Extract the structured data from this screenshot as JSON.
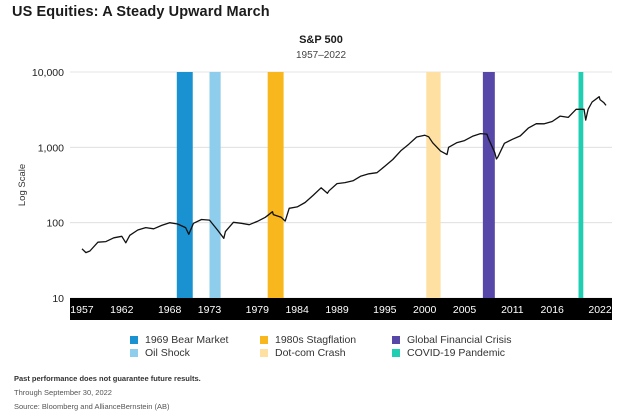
{
  "page_title": "US Equities: A Steady Upward March",
  "chart_data": {
    "type": "line",
    "title": "S&P 500",
    "subtitle": "1957–2022",
    "ylabel": "Log Scale",
    "xlabel": "",
    "y_scale": "log",
    "ylim": [
      10,
      10000
    ],
    "xlim": [
      1955.5,
      2023.5
    ],
    "y_ticks": [
      10,
      100,
      1000,
      10000
    ],
    "y_tick_labels": [
      "10",
      "100",
      "1,000",
      "10,000"
    ],
    "x_ticks": [
      1957,
      1962,
      1968,
      1973,
      1979,
      1984,
      1989,
      1995,
      2000,
      2005,
      2011,
      2016,
      2022
    ],
    "x_tick_labels": [
      "1957",
      "1962",
      "1968",
      "1973",
      "1979",
      "1984",
      "1989",
      "1995",
      "2000",
      "2005",
      "2011",
      "2016",
      "2022"
    ],
    "grid": "horizontal",
    "series": [
      {
        "color": "#111111",
        "x": [
          1957,
          1957.5,
          1958,
          1959,
          1960,
          1961,
          1962,
          1962.5,
          1963,
          1964,
          1965,
          1966,
          1967,
          1968,
          1969,
          1970,
          1970.4,
          1971,
          1972,
          1973,
          1974,
          1974.8,
          1975,
          1976,
          1977,
          1978,
          1979,
          1980,
          1980.9,
          1981,
          1982,
          1982.5,
          1983,
          1984,
          1985,
          1986,
          1987,
          1987.8,
          1988,
          1989,
          1990,
          1991,
          1992,
          1993,
          1994,
          1995,
          1996,
          1997,
          1998,
          1999,
          2000,
          2000.5,
          2001,
          2002,
          2002.8,
          2003,
          2004,
          2005,
          2006,
          2007,
          2007.8,
          2008,
          2008.8,
          2009,
          2009.2,
          2010,
          2011,
          2012,
          2013,
          2014,
          2015,
          2016,
          2017,
          2018,
          2019,
          2020,
          2020.2,
          2020.5,
          2021,
          2021.9,
          2022,
          2022.5,
          2022.75
        ],
        "values": [
          45,
          40,
          42,
          55,
          56,
          63,
          66,
          54,
          68,
          80,
          86,
          83,
          92,
          100,
          96,
          86,
          70,
          98,
          110,
          108,
          80,
          62,
          76,
          101,
          98,
          94,
          104,
          118,
          140,
          128,
          118,
          105,
          155,
          162,
          185,
          230,
          290,
          245,
          265,
          330,
          340,
          360,
          415,
          445,
          460,
          560,
          690,
          900,
          1100,
          1370,
          1450,
          1380,
          1150,
          890,
          800,
          1000,
          1150,
          1230,
          1400,
          1520,
          1500,
          1300,
          850,
          700,
          750,
          1130,
          1280,
          1420,
          1800,
          2060,
          2050,
          2200,
          2600,
          2500,
          3200,
          3200,
          2300,
          3200,
          4000,
          4700,
          4300,
          3900,
          3600
        ]
      }
    ],
    "events": [
      {
        "label": "1969 Bear Market",
        "start": 1968.9,
        "end": 1970.9,
        "color": "#1a92d2"
      },
      {
        "label": "Oil Shock",
        "start": 1973.0,
        "end": 1974.4,
        "color": "#8fcdec"
      },
      {
        "label": "1980s Stagflation",
        "start": 1980.3,
        "end": 1982.3,
        "color": "#f8b81d"
      },
      {
        "label": "Dot-com Crash",
        "start": 2000.2,
        "end": 2002.0,
        "color": "#fde0a2"
      },
      {
        "label": "Global Financial Crisis",
        "start": 2007.3,
        "end": 2008.8,
        "color": "#5647a8"
      },
      {
        "label": "COVID-19 Pandemic",
        "start": 2019.3,
        "end": 2019.9,
        "color": "#20cfb1"
      }
    ],
    "legend_position": "bottom"
  },
  "footnotes": {
    "disclaimer": "Past performance does not guarantee future results.",
    "through": "Through September 30, 2022",
    "source": "Source: Bloomberg and AllianceBernstein (AB)"
  }
}
